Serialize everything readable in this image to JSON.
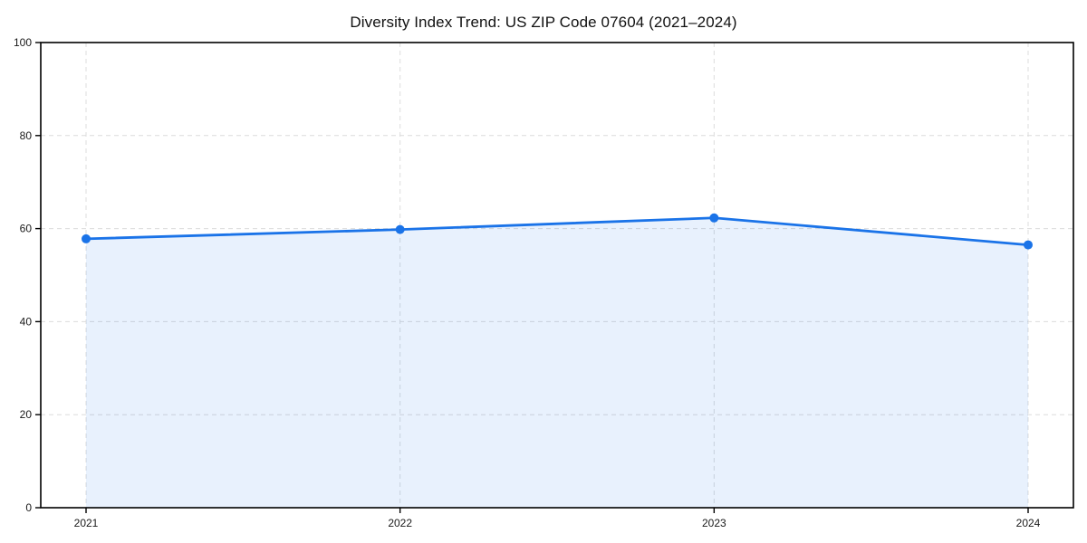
{
  "chart_data": {
    "type": "area",
    "title": "Diversity Index Trend: US ZIP Code 07604 (2021–2024)",
    "categories": [
      "2021",
      "2022",
      "2023",
      "2024"
    ],
    "series": [
      {
        "name": "Diversity Index",
        "values": [
          57.8,
          59.8,
          62.3,
          56.5
        ]
      }
    ],
    "xlabel": "",
    "ylabel": "",
    "ylim": [
      0,
      100
    ],
    "y_ticks": [
      0,
      20,
      40,
      60,
      80,
      100
    ],
    "grid": true,
    "grid_style": "dashed",
    "legend": "none",
    "marker": "circle",
    "colors": {
      "line": "#1a73e8",
      "marker": "#1a73e8",
      "fill": "rgba(26,115,232,0.10)",
      "grid": "#dcdcdc",
      "axis": "#000000",
      "tick_text": "#1a1a1a",
      "background": "#ffffff"
    }
  }
}
